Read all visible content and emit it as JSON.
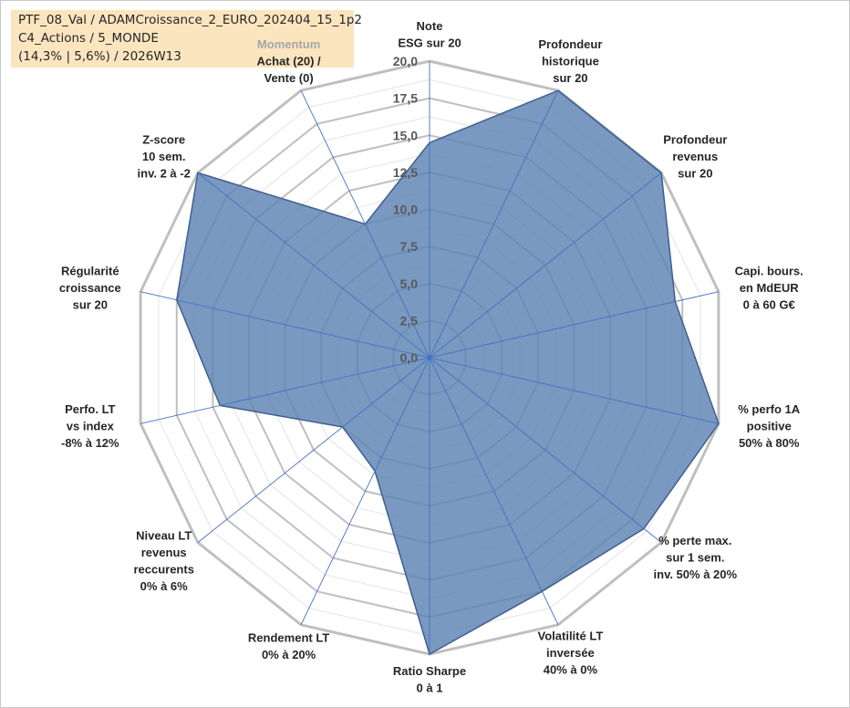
{
  "title": {
    "lines": [
      "PTF_08_Val / ADAMCroissance_2_EURO_202404_15_1p2",
      "C4_Actions / 5_MONDE",
      "(14,3% | 5,6%) / 2026W13"
    ],
    "background": "#fbe5bf"
  },
  "chart_data": {
    "type": "radar",
    "rmin": 0,
    "rmax": 20,
    "ticks": [
      "0,0",
      "2,5",
      "5,0",
      "7,5",
      "10,0",
      "12,5",
      "15,0",
      "17,5",
      "20,0"
    ],
    "tick_step": 2.5,
    "grid": true,
    "axes": [
      {
        "lines": [
          "Note",
          "ESG sur 20"
        ]
      },
      {
        "lines": [
          "Profondeur",
          "historique",
          "sur 20"
        ]
      },
      {
        "lines": [
          "Profondeur",
          "revenus",
          "sur 20"
        ]
      },
      {
        "lines": [
          "Capi. bours.",
          "en MdEUR",
          "0 à 60 G€"
        ]
      },
      {
        "lines": [
          "% perfo 1A",
          "positive",
          "50% à 80%"
        ]
      },
      {
        "lines": [
          "% perte max.",
          "sur 1 sem.",
          "inv. 50% à 20%"
        ]
      },
      {
        "lines": [
          "Volatilité LT",
          "inversée",
          "40% à 0%"
        ]
      },
      {
        "lines": [
          "Ratio Sharpe",
          "0 à 1"
        ]
      },
      {
        "lines": [
          "Rendement LT",
          "0% à 20%"
        ]
      },
      {
        "lines": [
          "Niveau LT",
          "revenus",
          "reccurents",
          "0% à 6%"
        ]
      },
      {
        "lines": [
          "Perfo. LT",
          "vs index",
          "-8% à 12%"
        ]
      },
      {
        "lines": [
          "Régularité",
          "croissance",
          "sur 20"
        ]
      },
      {
        "lines": [
          "Z-score",
          "10 sem.",
          "inv. 2 à -2"
        ]
      },
      {
        "lines": [
          "Achat (20) /",
          "Vente (0)"
        ],
        "header": "Momentum"
      }
    ],
    "series": [
      {
        "values": [
          14.5,
          20,
          20,
          17,
          20,
          18.5,
          17.5,
          20,
          8.5,
          7.5,
          14.5,
          17.5,
          20,
          10
        ]
      }
    ],
    "colors": {
      "fill": "#5b82b3",
      "fill_opacity": 0.82,
      "stroke": "#3f5f8f",
      "grid_major": "#bfbfbf",
      "grid_minor": "#e3e3e3",
      "spoke": "#4472c4"
    }
  }
}
